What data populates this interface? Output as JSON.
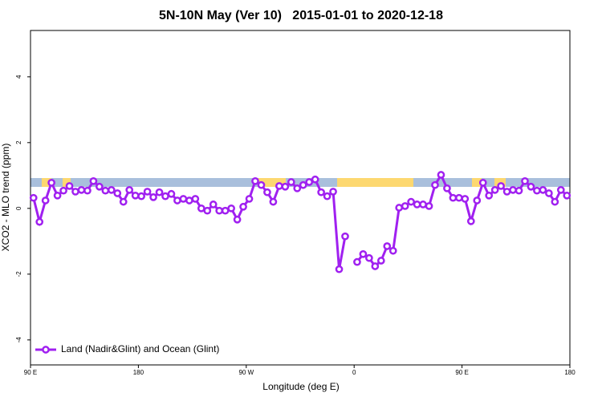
{
  "chart_data": {
    "type": "line",
    "title": "5N-10N May (Ver 10)   2015-01-01 to 2020-12-18",
    "x_label": "Longitude (deg E)",
    "y_label": "XCO2 - MLO trend (ppm)",
    "xlim": [
      90,
      540
    ],
    "xticks": [
      {
        "value": 90,
        "label": "90 E"
      },
      180,
      {
        "value": 270,
        "label": "90 W"
      },
      {
        "value": 360,
        "label": "0"
      },
      {
        "value": 450,
        "label": "90 E"
      },
      {
        "value": 540,
        "label": "180"
      }
    ],
    "ylim": [
      -4.76,
      5.41
    ],
    "yticks": [
      -4,
      -2,
      0,
      2,
      4
    ],
    "legend": "bottom-left",
    "x": [
      92.5,
      97.5,
      102.5,
      107.5,
      112.5,
      117.5,
      122.5,
      127.5,
      132.5,
      137.5,
      142.5,
      147.5,
      152.5,
      157.5,
      162.5,
      167.5,
      172.5,
      177.5,
      182.5,
      187.5,
      192.5,
      197.5,
      202.5,
      207.5,
      212.5,
      217.5,
      222.5,
      227.5,
      232.5,
      237.5,
      242.5,
      247.5,
      252.5,
      257.5,
      262.5,
      267.5,
      272.5,
      277.5,
      282.5,
      287.5,
      292.5,
      297.5,
      302.5,
      307.5,
      312.5,
      317.5,
      322.5,
      327.5,
      332.5,
      337.5,
      342.5,
      347.5,
      352.5,
      357.5,
      362.5,
      367.5,
      372.5,
      377.5,
      382.5,
      387.5,
      392.5,
      397.5,
      402.5,
      407.5,
      412.5,
      417.5,
      422.5,
      427.5,
      432.5,
      437.5,
      442.5,
      447.5,
      452.5,
      457.5,
      462.5,
      467.5,
      472.5,
      477.5,
      482.5,
      487.5,
      492.5,
      497.5,
      502.5,
      507.5,
      512.5,
      517.5,
      522.5,
      527.5,
      532.5,
      537.5
    ],
    "series": [
      {
        "name": "Land (Nadir&Glint) and Ocean (Glint)",
        "color": "#a020f0",
        "values": [
          0.32,
          -0.41,
          0.24,
          0.78,
          0.39,
          0.54,
          0.68,
          0.51,
          0.56,
          0.54,
          0.83,
          0.66,
          0.54,
          0.56,
          0.46,
          0.2,
          0.56,
          0.39,
          0.37,
          0.51,
          0.34,
          0.49,
          0.37,
          0.44,
          0.24,
          0.29,
          0.24,
          0.29,
          0,
          -0.07,
          0.12,
          -0.07,
          -0.07,
          0,
          -0.34,
          0.05,
          0.29,
          0.83,
          0.71,
          0.49,
          0.2,
          0.68,
          0.66,
          0.8,
          0.61,
          0.71,
          0.8,
          0.88,
          0.49,
          0.37,
          0.51,
          -1.85,
          -0.85,
          null,
          -1.63,
          -1.39,
          -1.51,
          -1.76,
          -1.59,
          -1.15,
          -1.29,
          0.02,
          0.07,
          0.2,
          0.12,
          0.12,
          0.07,
          0.71,
          1.02,
          0.61,
          0.32,
          0.32,
          0.29,
          -0.39,
          0.24,
          0.78,
          0.39,
          0.56,
          0.68,
          0.51,
          0.56,
          0.54,
          0.83,
          0.66,
          0.54,
          0.56,
          0.46,
          0.2,
          0.56,
          0.39
        ]
      }
    ]
  }
}
